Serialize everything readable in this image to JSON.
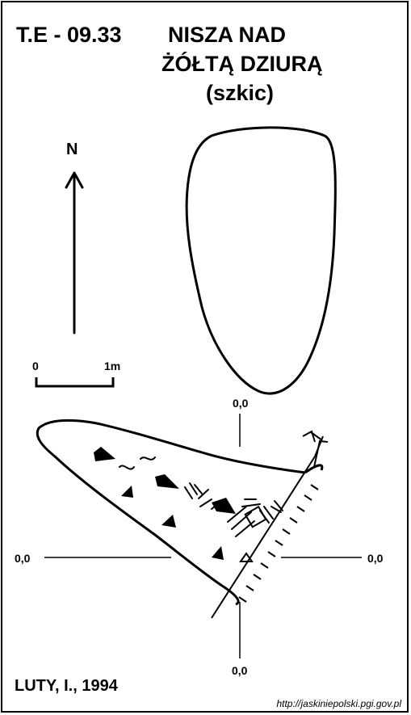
{
  "title": {
    "code": "T.E - 09.33",
    "line1": "NISZA NAD",
    "line2": "ŻÓŁTĄ DZIURĄ",
    "line3": "(szkic)"
  },
  "north": {
    "label": "N"
  },
  "scale_bar": {
    "start_label": "0",
    "end_label": "1m"
  },
  "reference_labels": {
    "top": "0,0",
    "left": "0,0",
    "right": "0,0",
    "bottom": "0,0"
  },
  "author": "LUTY, I., 1994",
  "source_url": "http://jaskiniepolski.pgi.gov.pl",
  "colors": {
    "ink": "#000000",
    "paper": "#ffffff"
  }
}
